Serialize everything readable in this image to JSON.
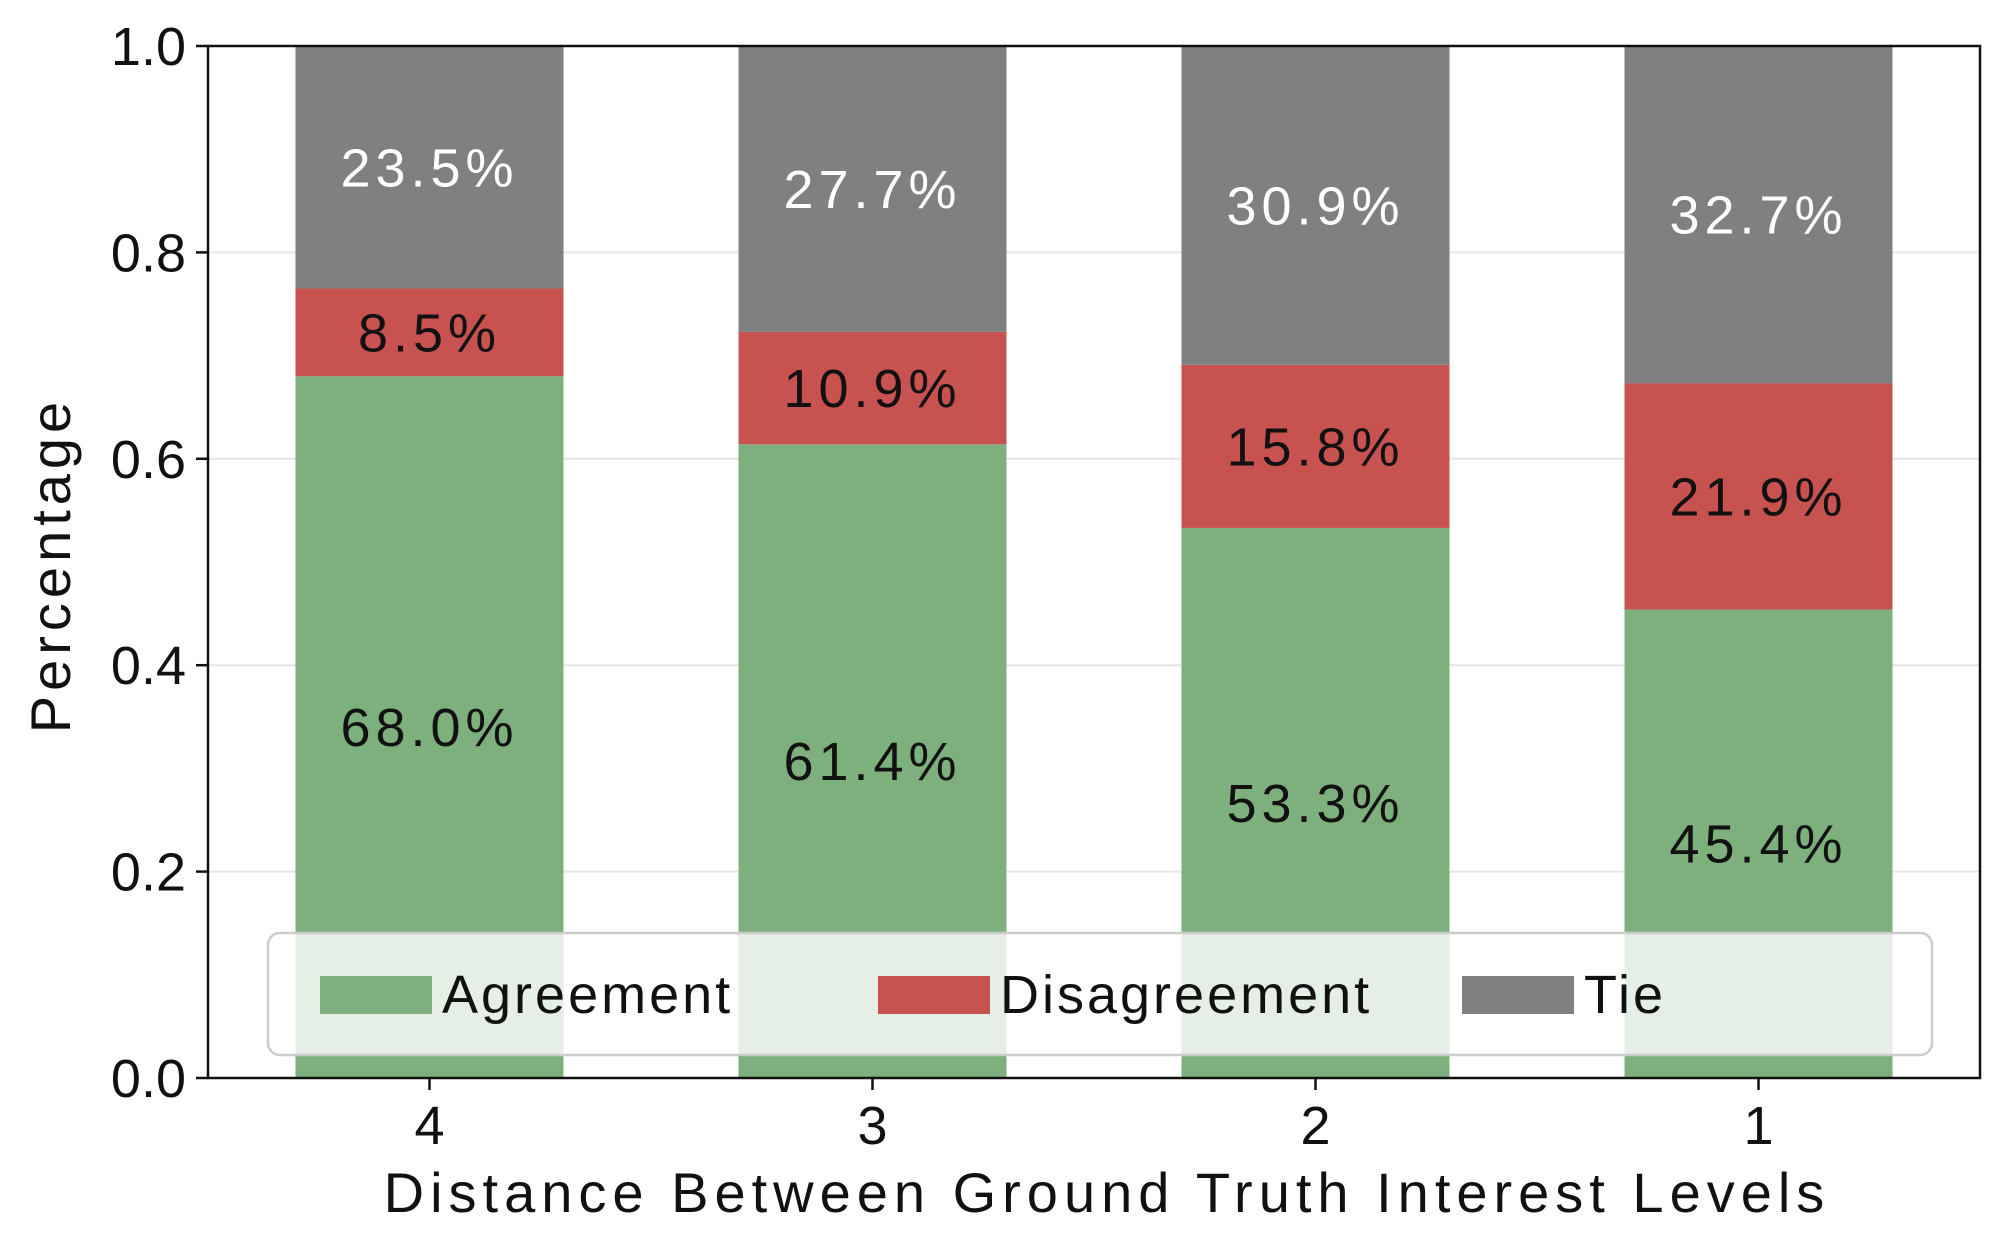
{
  "chart_data": {
    "type": "bar",
    "stacked": true,
    "categories": [
      "4",
      "3",
      "2",
      "1"
    ],
    "series": [
      {
        "name": "Agreement",
        "color": "#7db07c",
        "label_color": "#111111",
        "values": [
          0.68,
          0.614,
          0.533,
          0.454
        ],
        "labels": [
          "68.0%",
          "61.4%",
          "53.3%",
          "45.4%"
        ]
      },
      {
        "name": "Disagreement",
        "color": "#c85250",
        "label_color": "#111111",
        "values": [
          0.085,
          0.109,
          0.158,
          0.219
        ],
        "labels": [
          "8.5%",
          "10.9%",
          "15.8%",
          "21.9%"
        ]
      },
      {
        "name": "Tie",
        "color": "#808080",
        "label_color": "#ffffff",
        "values": [
          0.235,
          0.277,
          0.309,
          0.327
        ],
        "labels": [
          "23.5%",
          "27.7%",
          "30.9%",
          "32.7%"
        ]
      }
    ],
    "xlabel": "Distance Between Ground Truth Interest Levels",
    "ylabel": "Percentage",
    "ylim": [
      0.0,
      1.0
    ],
    "yticks": [
      "0.0",
      "0.2",
      "0.4",
      "0.6",
      "0.8",
      "1.0"
    ],
    "grid": "horizontal",
    "legend_position": "bottom-center"
  }
}
